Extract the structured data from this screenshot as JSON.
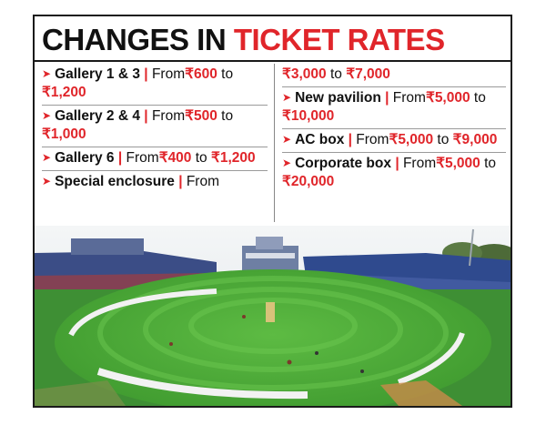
{
  "title": {
    "part1": "CHANGES IN",
    "part2": "TICKET RATES"
  },
  "left_column": [
    {
      "name": "Gallery 1 & 3",
      "sep": "|",
      "from_label": "From",
      "from": "₹600",
      "to_label": "to",
      "to": "₹1,200"
    },
    {
      "name": "Gallery 2 & 4",
      "sep": "|",
      "from_label": "From",
      "from": "₹500",
      "to_label": "to",
      "to": "₹1,000"
    },
    {
      "name": "Gallery 6",
      "sep": "|",
      "from_label": "From",
      "from": "₹400",
      "to_label": "to",
      "to": "₹1,200"
    },
    {
      "name": "Special enclosure",
      "sep": "|",
      "from_label": "From"
    }
  ],
  "right_column": {
    "continuation": {
      "from": "₹3,000",
      "to_label": "to",
      "to": "₹7,000"
    },
    "items": [
      {
        "name": "New pavilion",
        "sep": "|",
        "from_label": "From",
        "from": "₹5,000",
        "to_label": "to",
        "to": "₹10,000"
      },
      {
        "name": "AC box",
        "sep": "|",
        "from_label": "From",
        "from": "₹5,000",
        "to_label": "to",
        "to": "₹9,000"
      },
      {
        "name": "Corporate box",
        "sep": "|",
        "from_label": "From",
        "from": "₹5,000",
        "to_label": "to",
        "to": "₹20,000"
      }
    ]
  },
  "photo": {
    "icon": "cricket-stadium-photo",
    "sky": "#eef1f3",
    "grass": "#4fae3a",
    "stand": "#3b4d86"
  }
}
